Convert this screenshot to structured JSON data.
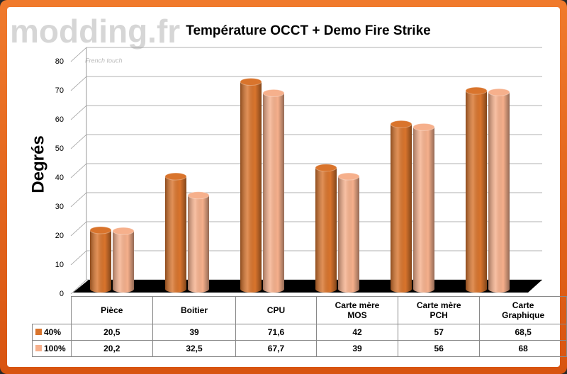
{
  "logo": "modding.fr",
  "tagline": "French touch",
  "chart_data": {
    "type": "bar3d",
    "title": "Température OCCT + Demo Fire Strike",
    "y_label": "Degrés",
    "categories": [
      "Pièce",
      "Boitier",
      "CPU",
      "Carte mère MOS",
      "Carte mère PCH",
      "Carte Graphique"
    ],
    "series": [
      {
        "name": "40%",
        "color": "#d9742c",
        "values": [
          20.5,
          39,
          71.6,
          42,
          57,
          68.5
        ],
        "value_labels": [
          "20,5",
          "39",
          "71,6",
          "42",
          "57",
          "68,5"
        ]
      },
      {
        "name": "100%",
        "color": "#f6b08c",
        "values": [
          20.2,
          32.5,
          67.7,
          39,
          56,
          68
        ],
        "value_labels": [
          "20,2",
          "32,5",
          "67,7",
          "39",
          "56",
          "68"
        ]
      }
    ],
    "ylim": [
      0,
      80
    ],
    "yticks": [
      0,
      10,
      20,
      30,
      40,
      50,
      60,
      70,
      80
    ],
    "grid": true
  }
}
